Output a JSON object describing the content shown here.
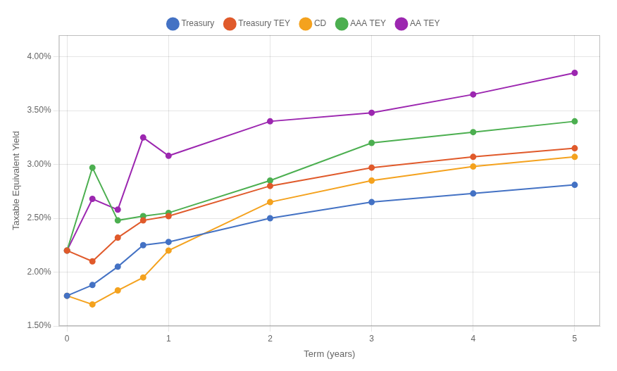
{
  "chart_data": {
    "type": "line",
    "xlabel": "Term (years)",
    "ylabel": "Taxable Equivalent Yield",
    "x": [
      0,
      0.25,
      0.5,
      0.75,
      1,
      2,
      3,
      4,
      5
    ],
    "series": [
      {
        "name": "Treasury",
        "color": "#4472c4",
        "marker": "circle",
        "values": [
          0.0178,
          0.0188,
          0.0205,
          0.0225,
          0.0228,
          0.025,
          0.0265,
          0.0273,
          0.0281
        ]
      },
      {
        "name": "Treasury TEY",
        "color": "#e05a2b",
        "marker": "circle",
        "values": [
          0.022,
          0.021,
          0.0232,
          0.0248,
          0.0252,
          0.028,
          0.0297,
          0.0307,
          0.0315
        ]
      },
      {
        "name": "CD",
        "color": "#f4a21e",
        "marker": "circle",
        "values": [
          0.0178,
          0.017,
          0.0183,
          0.0195,
          0.022,
          0.0265,
          0.0285,
          0.0298,
          0.0307
        ]
      },
      {
        "name": "AAA TEY",
        "color": "#4caf50",
        "marker": "circle",
        "values": [
          0.022,
          0.0297,
          0.0248,
          0.0252,
          0.0255,
          0.0285,
          0.032,
          0.033,
          0.034
        ]
      },
      {
        "name": "AA TEY",
        "color": "#9c27b0",
        "marker": "circle",
        "values": [
          0.022,
          0.0268,
          0.0258,
          0.0325,
          0.0308,
          0.034,
          0.0348,
          0.0365,
          0.0385
        ]
      }
    ],
    "xlim": [
      -0.08,
      5.25
    ],
    "xticks": [
      0,
      1,
      2,
      3,
      4,
      5
    ],
    "ylim": [
      0.015,
      0.042
    ],
    "yticks": [
      {
        "value": 0.015,
        "label": "1.50%"
      },
      {
        "value": 0.02,
        "label": "2.00%"
      },
      {
        "value": 0.025,
        "label": "2.50%"
      },
      {
        "value": 0.03,
        "label": "3.00%"
      },
      {
        "value": 0.035,
        "label": "3.50%"
      },
      {
        "value": 0.04,
        "label": "4.00%"
      }
    ],
    "grid": true,
    "legend": "top"
  }
}
